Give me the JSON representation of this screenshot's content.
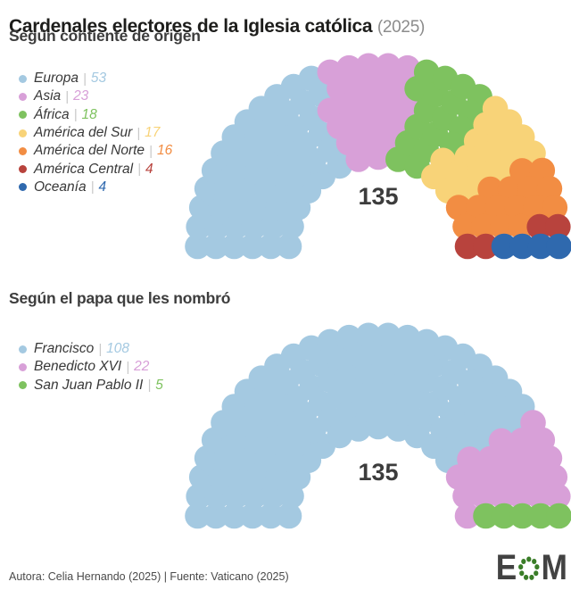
{
  "header": {
    "title": "Cardenales electores de la Iglesia católica",
    "year": "(2025)"
  },
  "ui": {
    "separator": "|"
  },
  "chart_data": [
    {
      "type": "parliament",
      "subtitle": "Según contiente de origen",
      "total": 135,
      "center_label": "135",
      "rows": [
        15,
        18,
        21,
        24,
        27,
        30
      ],
      "legend_position": "left",
      "series": [
        {
          "name": "Europa",
          "value": 53,
          "color": "#a4c9e1"
        },
        {
          "name": "Asia",
          "value": 23,
          "color": "#d8a0d8"
        },
        {
          "name": "África",
          "value": 18,
          "color": "#7ec25f"
        },
        {
          "name": "América del Sur",
          "value": 17,
          "color": "#f8d378"
        },
        {
          "name": "América del Norte",
          "value": 16,
          "color": "#f28d43"
        },
        {
          "name": "América Central",
          "value": 4,
          "color": "#b8433d"
        },
        {
          "name": "Oceanía",
          "value": 4,
          "color": "#2f69ae"
        }
      ]
    },
    {
      "type": "parliament",
      "subtitle": "Según el papa que les nombró",
      "total": 135,
      "center_label": "135",
      "rows": [
        15,
        18,
        21,
        24,
        27,
        30
      ],
      "legend_position": "left",
      "series": [
        {
          "name": "Francisco",
          "value": 108,
          "color": "#a4c9e1"
        },
        {
          "name": "Benedicto XVI",
          "value": 22,
          "color": "#d8a0d8"
        },
        {
          "name": "San Juan Pablo II",
          "value": 5,
          "color": "#7ec25f"
        }
      ]
    }
  ],
  "footer": {
    "credit": "Autora: Celia Hernando (2025) | Fuente: Vaticano (2025)",
    "logo": {
      "letter_e": "E",
      "letter_m": "M",
      "letter_color": "#424242",
      "dot_color": "#3a7d28"
    }
  }
}
